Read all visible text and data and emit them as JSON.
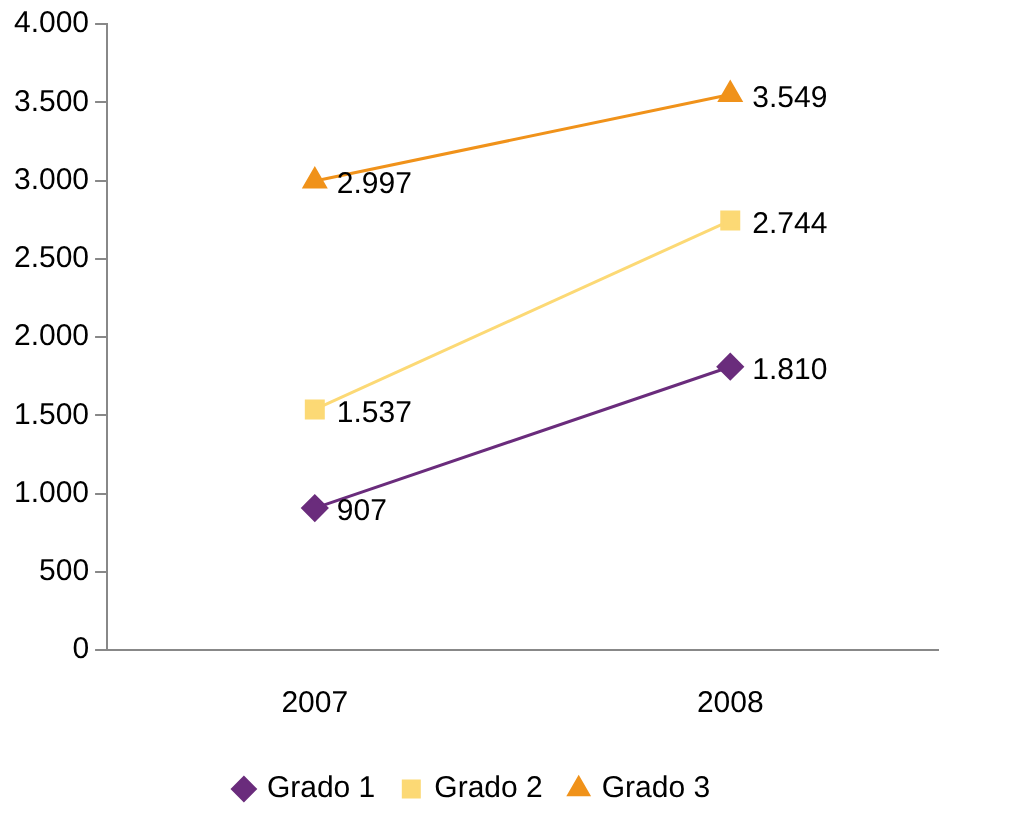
{
  "chart_data": {
    "type": "line",
    "categories": [
      "2007",
      "2008"
    ],
    "series": [
      {
        "name": "Grado 1",
        "color": "#6a2c7c",
        "marker": "diamond",
        "values": [
          907,
          1810
        ],
        "value_labels": [
          "907",
          "1.810"
        ]
      },
      {
        "name": "Grado 2",
        "color": "#fcd975",
        "marker": "square",
        "values": [
          1537,
          2744
        ],
        "value_labels": [
          "1.537",
          "2.744"
        ]
      },
      {
        "name": "Grado 3",
        "color": "#f0921a",
        "marker": "triangle",
        "values": [
          2997,
          3549
        ],
        "value_labels": [
          "2.997",
          "3.549"
        ]
      }
    ],
    "ylim": [
      0,
      4000
    ],
    "yticks": [
      {
        "value": 0,
        "label": "0"
      },
      {
        "value": 500,
        "label": "500"
      },
      {
        "value": 1000,
        "label": "1.000"
      },
      {
        "value": 1500,
        "label": "1.500"
      },
      {
        "value": 2000,
        "label": "2.000"
      },
      {
        "value": 2500,
        "label": "2.500"
      },
      {
        "value": 3000,
        "label": "3.000"
      },
      {
        "value": 3500,
        "label": "3.500"
      },
      {
        "value": 4000,
        "label": "4.000"
      }
    ],
    "grid": false,
    "legend": "bottom",
    "line_style": "solid"
  }
}
